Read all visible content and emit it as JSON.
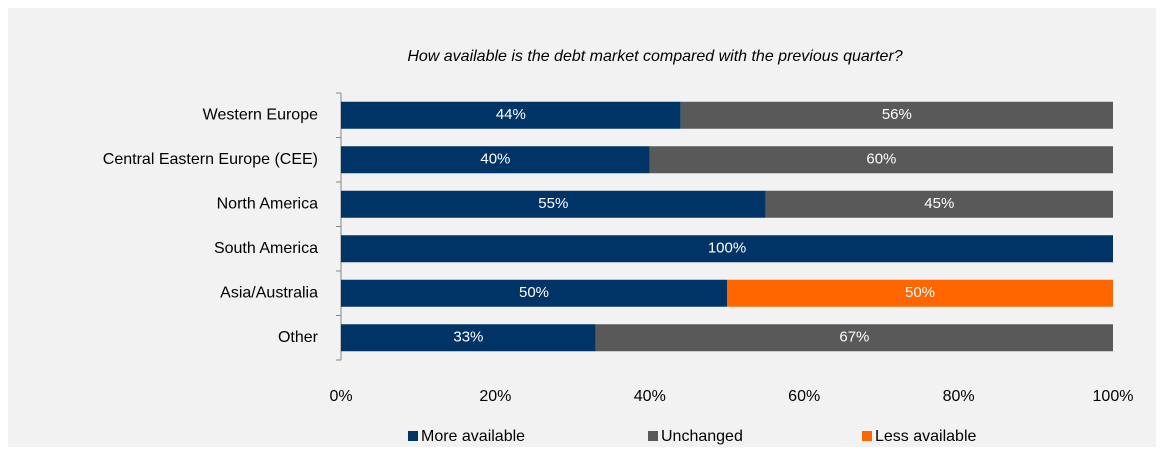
{
  "chart_data": {
    "type": "bar",
    "orientation": "horizontal",
    "stacked": true,
    "title": "How available is the debt market compared with the previous quarter?",
    "categories": [
      "Western Europe",
      "Central Eastern Europe (CEE)",
      "North America",
      "South America",
      "Asia/Australia",
      "Other"
    ],
    "series": [
      {
        "name": "More available",
        "color": "#003366",
        "values": [
          44,
          40,
          55,
          100,
          50,
          33
        ],
        "value_labels": [
          "44%",
          "40%",
          "55%",
          "100%",
          "50%",
          "33%"
        ]
      },
      {
        "name": "Unchanged",
        "color": "#595959",
        "values": [
          56,
          60,
          45,
          0,
          0,
          67
        ],
        "value_labels": [
          "56%",
          "60%",
          "45%",
          null,
          null,
          "67%"
        ]
      },
      {
        "name": "Less available",
        "color": "#ff6600",
        "values": [
          0,
          0,
          0,
          0,
          50,
          0
        ],
        "value_labels": [
          null,
          null,
          null,
          null,
          "50%",
          null
        ]
      }
    ],
    "xlim": [
      0,
      100
    ],
    "xticks": [
      {
        "value": 0,
        "label": "0%"
      },
      {
        "value": 20,
        "label": "20%"
      },
      {
        "value": 40,
        "label": "40%"
      },
      {
        "value": 60,
        "label": "60%"
      },
      {
        "value": 80,
        "label": "80%"
      },
      {
        "value": 100,
        "label": "100%"
      }
    ],
    "legend": "bottom"
  }
}
